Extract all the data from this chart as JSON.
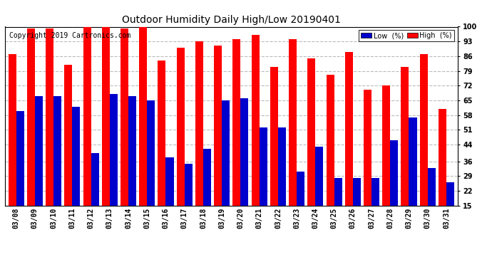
{
  "title": "Outdoor Humidity Daily High/Low 20190401",
  "copyright": "Copyright 2019 Cartronics.com",
  "dates": [
    "03/08",
    "03/09",
    "03/10",
    "03/11",
    "03/12",
    "03/13",
    "03/14",
    "03/15",
    "03/16",
    "03/17",
    "03/18",
    "03/19",
    "03/20",
    "03/21",
    "03/22",
    "03/23",
    "03/24",
    "03/25",
    "03/26",
    "03/27",
    "03/28",
    "03/29",
    "03/30",
    "03/31"
  ],
  "high": [
    87,
    99,
    99,
    82,
    100,
    100,
    99,
    101,
    84,
    90,
    93,
    91,
    94,
    96,
    81,
    94,
    85,
    77,
    88,
    70,
    72,
    81,
    87,
    61
  ],
  "low": [
    60,
    67,
    67,
    62,
    40,
    68,
    67,
    65,
    38,
    35,
    42,
    65,
    66,
    52,
    52,
    31,
    43,
    28,
    28,
    28,
    46,
    57,
    33,
    26
  ],
  "ylim": [
    15,
    100
  ],
  "ymin": 15,
  "yticks": [
    15,
    22,
    29,
    36,
    44,
    51,
    58,
    65,
    72,
    79,
    86,
    93,
    100
  ],
  "bg_color": "#ffffff",
  "plot_bg": "#ffffff",
  "bar_width": 0.42,
  "high_color": "#ff0000",
  "low_color": "#0000cc",
  "grid_color": "#bbbbbb",
  "title_fontsize": 10,
  "tick_fontsize": 7,
  "copyright_fontsize": 7
}
